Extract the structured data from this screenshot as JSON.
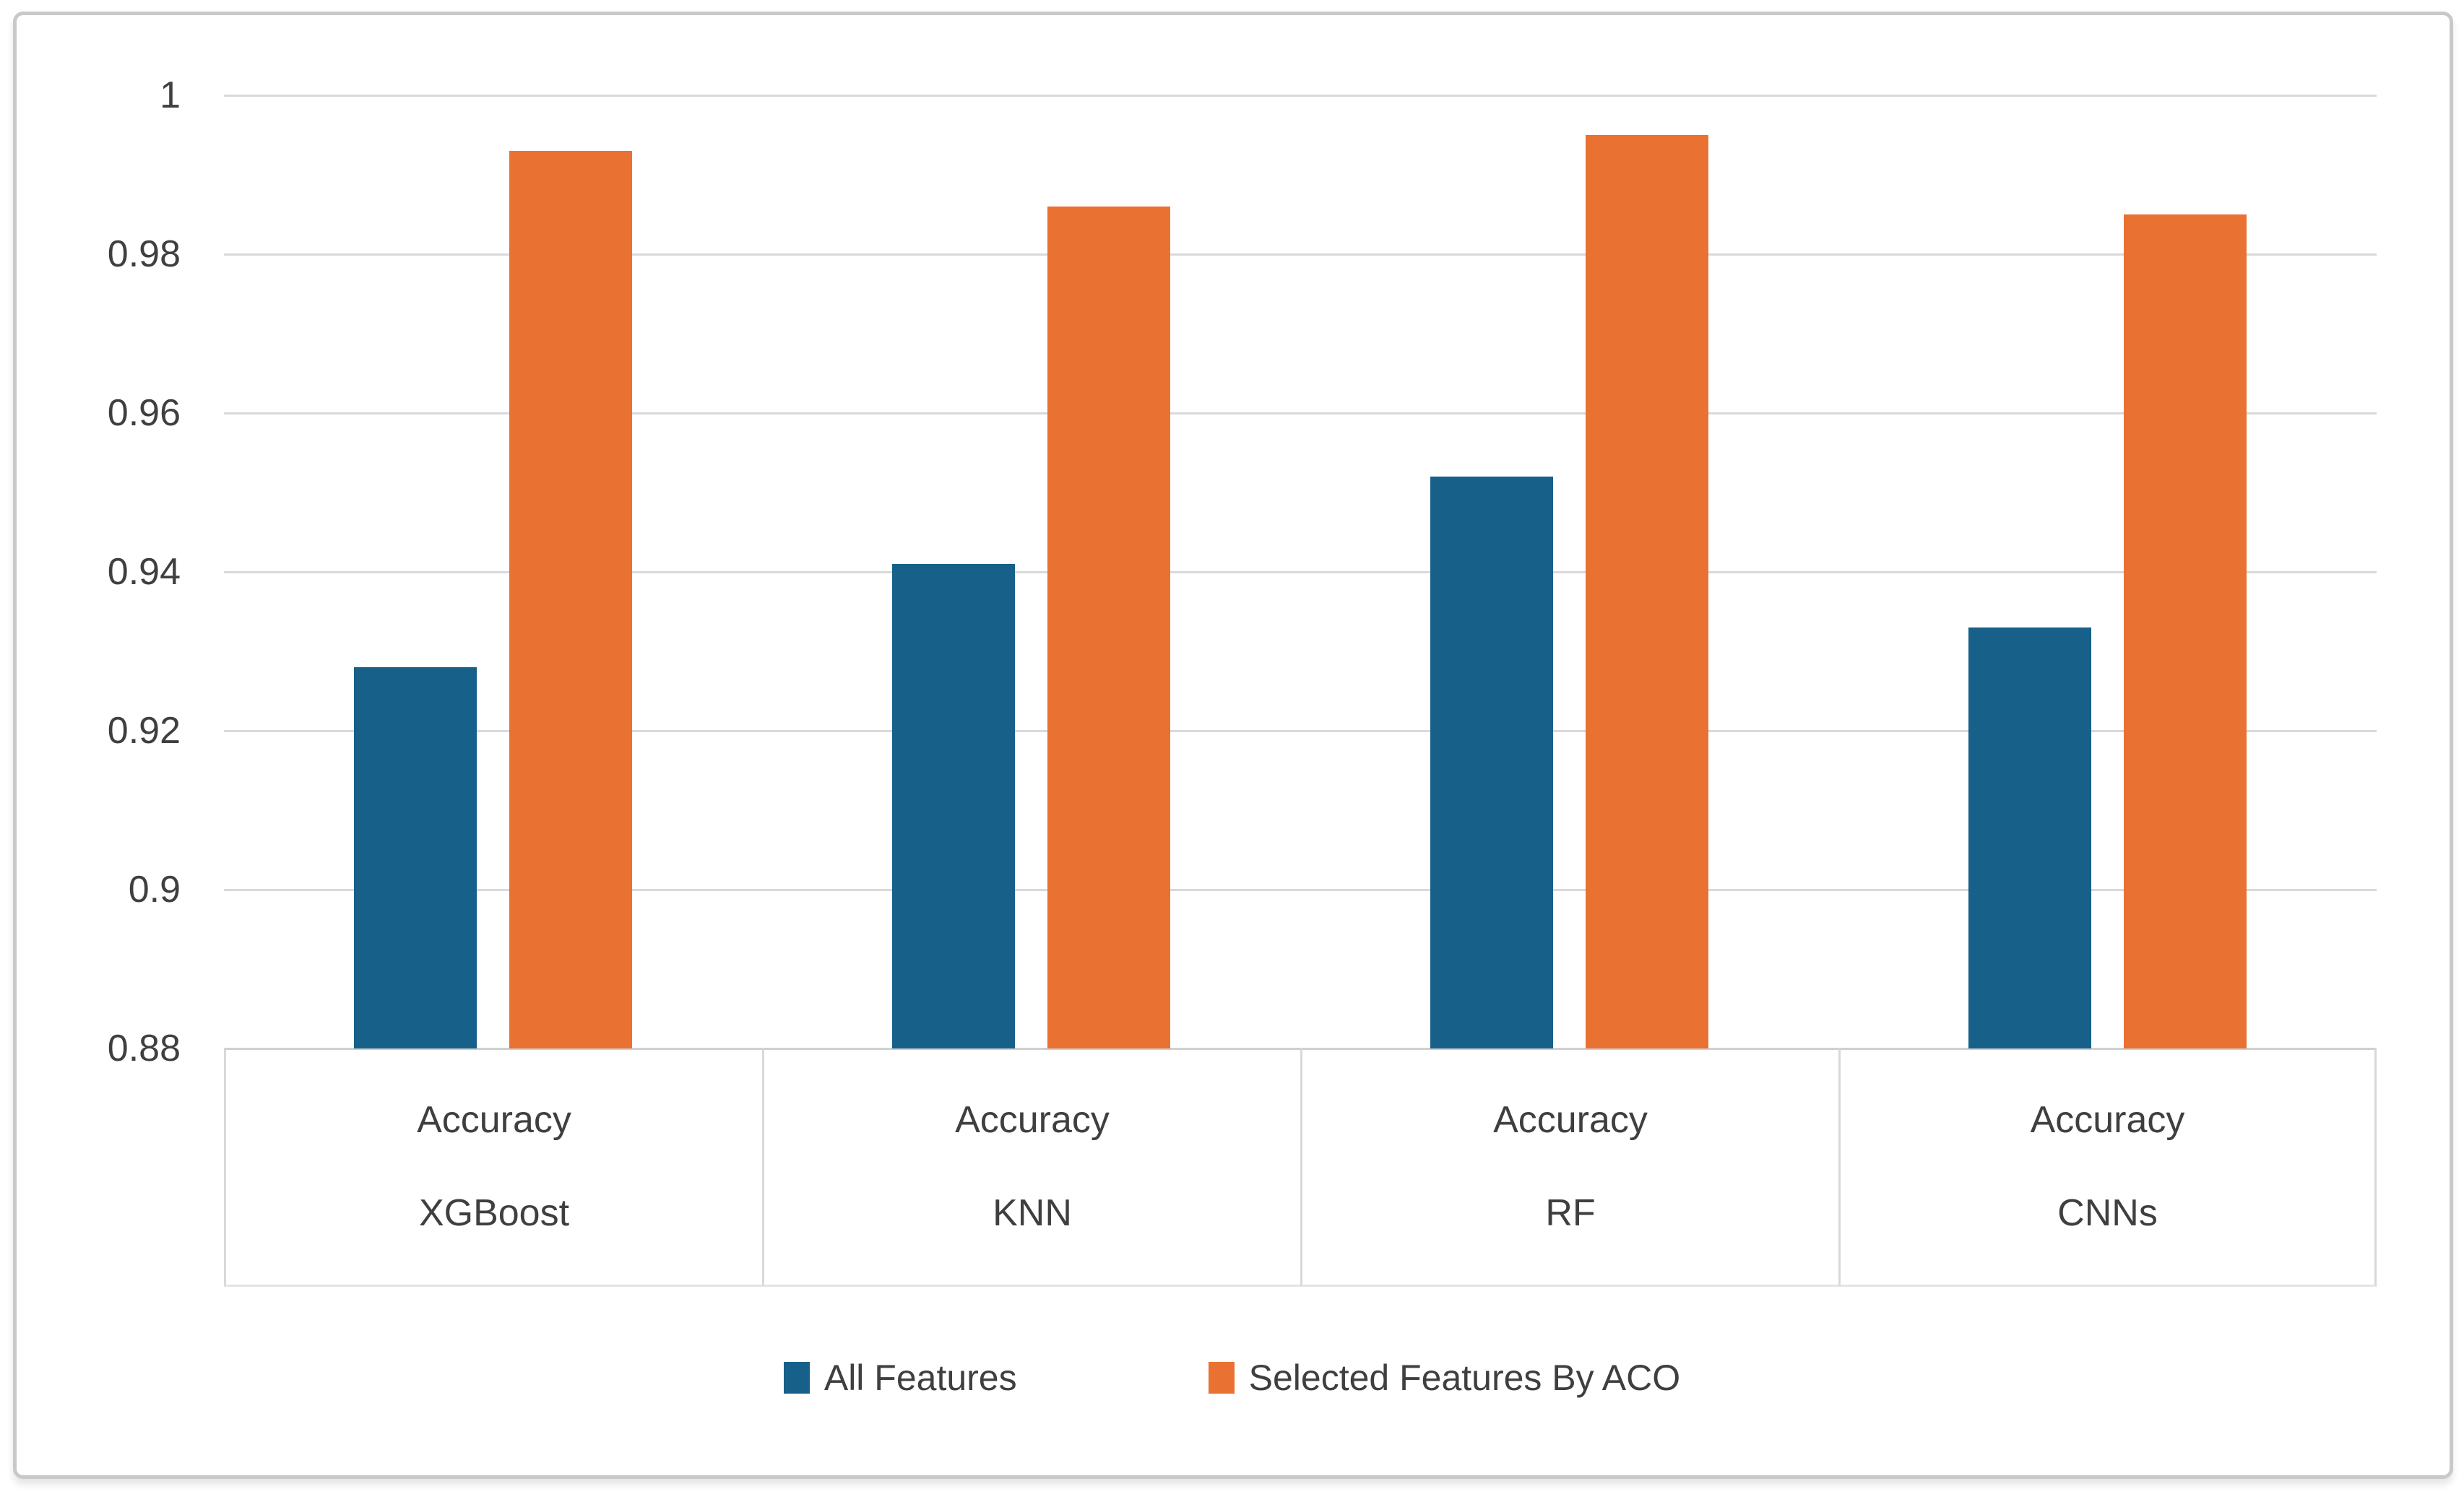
{
  "chart_data": {
    "type": "bar",
    "title": "",
    "categories": [
      {
        "metric": "Accuracy",
        "model": "XGBoost"
      },
      {
        "metric": "Accuracy",
        "model": "KNN"
      },
      {
        "metric": "Accuracy",
        "model": "RF"
      },
      {
        "metric": "Accuracy",
        "model": "CNNs"
      }
    ],
    "series": [
      {
        "name": "All Features",
        "color": "#16608A",
        "values": [
          0.928,
          0.941,
          0.952,
          0.933
        ]
      },
      {
        "name": "Selected Features By ACO",
        "color": "#E97132",
        "values": [
          0.993,
          0.986,
          0.995,
          0.985
        ]
      }
    ],
    "y_axis": {
      "min": 0.88,
      "max": 1.0,
      "tick_step": 0.02,
      "tick_labels": [
        "1",
        "0.98",
        "0.96",
        "0.94",
        "0.92",
        "0.9",
        "0.88"
      ]
    },
    "grid": true,
    "legend_position": "bottom",
    "colors": {
      "gridline": "#D9D9D9",
      "axis_text": "#3F3F3F",
      "frame_border": "#C9C9C9"
    }
  }
}
